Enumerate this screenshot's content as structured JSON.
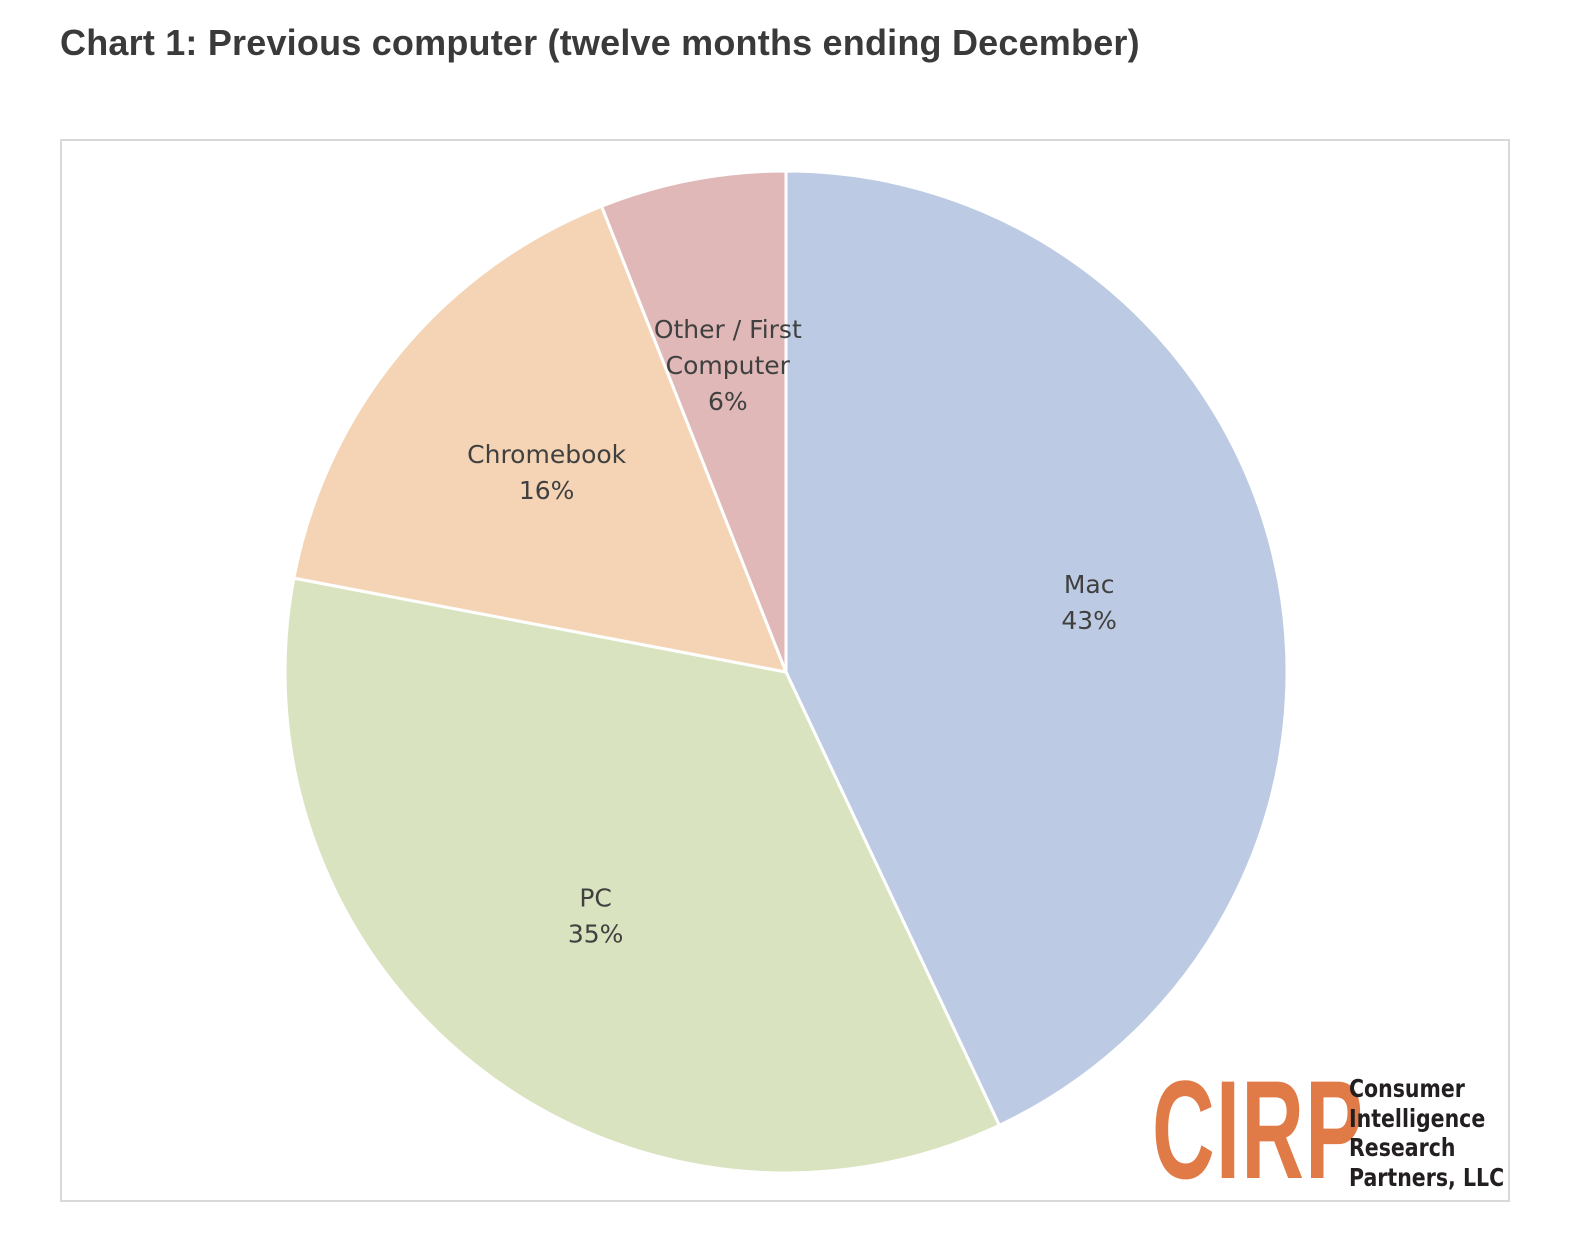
{
  "page": {
    "title": "Chart 1: Previous computer (twelve months ending December)"
  },
  "chart_data": {
    "type": "pie",
    "start_angle_deg": 0,
    "direction": "clockwise",
    "slices": [
      {
        "label_lines": [
          "Mac"
        ],
        "value": 43,
        "value_label": "43%",
        "color": "#bccbe3"
      },
      {
        "label_lines": [
          "PC"
        ],
        "value": 35,
        "value_label": "35%",
        "color": "#d9e3c0"
      },
      {
        "label_lines": [
          "Chromebook"
        ],
        "value": 16,
        "value_label": "16%",
        "color": "#f5d4b5"
      },
      {
        "label_lines": [
          "Other / First",
          "Computer"
        ],
        "value": 6,
        "value_label": "6%",
        "color": "#e0b8b8"
      }
    ],
    "legend": "none",
    "border_color": "#d9d9d9"
  },
  "logo": {
    "mark": "CIRP",
    "lines": [
      "Consumer",
      "Intelligence",
      "Research",
      "Partners, LLC"
    ],
    "mark_color": "#e07a47",
    "text_color": "#231f20"
  }
}
